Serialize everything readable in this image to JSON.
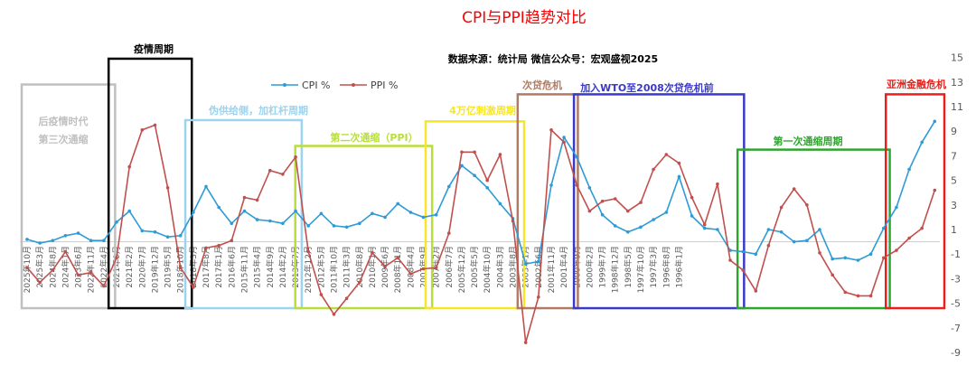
{
  "chart_data": {
    "type": "line",
    "title": "CPI与PPI趋势对比",
    "subtitle": "数据来源：统计局  微信公众号：宏观盛视2025",
    "x_order": "reversed (latest on the left)",
    "ylim": [
      -9,
      15
    ],
    "yticks": [
      15,
      13,
      11,
      9,
      7,
      5,
      3,
      1,
      -1,
      -3,
      -5,
      -7,
      -9
    ],
    "grid": false,
    "legend": "top-center",
    "x_tick_labels": [
      "2025年10月",
      "2025年3月",
      "2024年8月",
      "2024年1月",
      "2023年6月",
      "2022年11月",
      "2022年4月",
      "2021年9月",
      "2021年2月",
      "2020年7月",
      "2019年12月",
      "2019年5月",
      "2018年10月",
      "2018年3月",
      "2017年8月",
      "2017年1月",
      "2016年6月",
      "2015年11月",
      "2015年4月",
      "2014年9月",
      "2014年2月",
      "2013年7月",
      "2012年12月",
      "2012年5月",
      "2011年10月",
      "2011年3月",
      "2010年8月",
      "2010年1月",
      "2009年6月",
      "2008年11月",
      "2008年4月",
      "2007年9月",
      "2007年2月",
      "2006年7月",
      "2005年12月",
      "2005年5月",
      "2004年10月",
      "2004年3月",
      "2003年8月",
      "2003年1月",
      "2002年6月",
      "2001年11月",
      "2001年4月",
      "2000年9月",
      "2000年2月",
      "1999年7月",
      "1998年12月",
      "1998年5月",
      "1997年10月",
      "1997年3月",
      "1996年8月",
      "1996年1月"
    ],
    "series": [
      {
        "name": "CPI %",
        "color": "#2E9BD6",
        "x": [
          "2025-10",
          "2025-05",
          "2024-12",
          "2024-07",
          "2024-02",
          "2023-09",
          "2023-04",
          "2022-11",
          "2022-06",
          "2022-01",
          "2021-08",
          "2021-03",
          "2020-10",
          "2020-05",
          "2019-12",
          "2019-07",
          "2019-02",
          "2018-09",
          "2018-04",
          "2017-11",
          "2017-06",
          "2017-01",
          "2016-08",
          "2016-03",
          "2015-10",
          "2015-05",
          "2014-12",
          "2014-07",
          "2014-02",
          "2013-09",
          "2013-04",
          "2012-11",
          "2012-06",
          "2012-01",
          "2011-08",
          "2011-03",
          "2010-10",
          "2010-05",
          "2009-12",
          "2009-07",
          "2009-02",
          "2008-09",
          "2008-04",
          "2007-11",
          "2007-06",
          "2007-01",
          "2006-08",
          "2006-03",
          "2005-10",
          "2005-05",
          "2004-12",
          "2004-07",
          "2004-02",
          "2003-09",
          "2003-04",
          "2002-11",
          "2002-06",
          "2002-01",
          "2001-08",
          "2001-03",
          "2000-10",
          "2000-05",
          "1999-12",
          "1999-07",
          "1999-02",
          "1998-09",
          "1998-04",
          "1997-11",
          "1997-06",
          "1997-01",
          "1996-08",
          "1996-03"
        ],
        "values": [
          0.2,
          -0.1,
          0.1,
          0.5,
          0.7,
          0.1,
          0.1,
          1.6,
          2.5,
          0.9,
          0.8,
          0.4,
          0.5,
          2.4,
          4.5,
          2.8,
          1.5,
          2.5,
          1.8,
          1.7,
          1.5,
          2.5,
          1.3,
          2.3,
          1.3,
          1.2,
          1.5,
          2.3,
          2.0,
          3.1,
          2.4,
          2.0,
          2.2,
          4.5,
          6.2,
          5.4,
          4.4,
          3.1,
          1.9,
          -1.8,
          -1.6,
          4.6,
          8.5,
          6.9,
          4.4,
          2.2,
          1.3,
          0.8,
          1.2,
          1.8,
          2.4,
          5.3,
          2.1,
          1.1,
          1.0,
          -0.7,
          -0.8,
          -1.0,
          1.0,
          0.8,
          0.0,
          0.1,
          1.0,
          -1.4,
          -1.3,
          -1.5,
          -1.0,
          1.1,
          2.8,
          5.9,
          8.1,
          9.8
        ]
      },
      {
        "name": "PPI %",
        "color": "#C0504D",
        "x": [
          "2025-10",
          "2025-05",
          "2024-12",
          "2024-07",
          "2024-02",
          "2023-09",
          "2023-04",
          "2022-11",
          "2022-06",
          "2022-01",
          "2021-08",
          "2021-03",
          "2020-10",
          "2020-05",
          "2019-12",
          "2019-07",
          "2019-02",
          "2018-09",
          "2018-04",
          "2017-11",
          "2017-06",
          "2017-01",
          "2016-08",
          "2016-03",
          "2015-10",
          "2015-05",
          "2014-12",
          "2014-07",
          "2014-02",
          "2013-09",
          "2013-04",
          "2012-11",
          "2012-06",
          "2012-01",
          "2011-08",
          "2011-03",
          "2010-10",
          "2010-05",
          "2009-12",
          "2009-07",
          "2009-02",
          "2008-09",
          "2008-04",
          "2007-11",
          "2007-06",
          "2007-01",
          "2006-08",
          "2006-03",
          "2005-10",
          "2005-05",
          "2004-12",
          "2004-07",
          "2004-02",
          "2003-09",
          "2003-04",
          "2002-11",
          "2002-06",
          "2002-01",
          "2001-08",
          "2001-03",
          "2000-10",
          "2000-05",
          "1999-12",
          "1999-07",
          "1999-02",
          "1998-09",
          "1998-04",
          "1997-11",
          "1997-06",
          "1997-01",
          "1996-08",
          "1996-03"
        ],
        "values": [
          -2.1,
          -3.3,
          -2.3,
          -0.8,
          -2.7,
          -2.5,
          -3.6,
          -1.3,
          6.1,
          9.1,
          9.5,
          4.4,
          -2.1,
          -3.7,
          -0.5,
          -0.3,
          0.1,
          3.6,
          3.4,
          5.8,
          5.5,
          6.9,
          -0.8,
          -4.3,
          -5.9,
          -4.6,
          -3.3,
          -0.9,
          -2.0,
          -1.3,
          -2.6,
          -2.2,
          -2.1,
          0.7,
          7.3,
          7.3,
          5.0,
          7.1,
          1.7,
          -8.2,
          -4.5,
          9.1,
          8.1,
          4.6,
          2.5,
          3.3,
          3.5,
          2.5,
          3.2,
          5.9,
          7.1,
          6.4,
          3.6,
          1.4,
          4.7,
          -1.5,
          -2.3,
          -4.0,
          -0.3,
          2.8,
          4.3,
          3.0,
          -0.9,
          -2.7,
          -4.1,
          -4.4,
          -4.4,
          -1.3,
          -0.7,
          0.3,
          1.1,
          4.2
        ]
      }
    ],
    "periods": [
      {
        "label": "后疫情时代\n第三次通缩",
        "color": "#C0C0C0"
      },
      {
        "label": "疫情周期",
        "color": "#000000"
      },
      {
        "label": "伪供给侧，加杠杆周期",
        "color": "#9DD3EE"
      },
      {
        "label": "第二次通缩（PPI）",
        "color": "#B9DE3C"
      },
      {
        "label": "4万亿刺激周期",
        "color": "#F7E52B"
      },
      {
        "label": "次贷危机",
        "color": "#B07B62"
      },
      {
        "label": "加入WTO至2008次贷危机前",
        "color": "#3A3AC8"
      },
      {
        "label": "第一次通缩周期",
        "color": "#2EA52E"
      },
      {
        "label": "亚洲金融危机",
        "color": "#E8201B"
      }
    ]
  }
}
